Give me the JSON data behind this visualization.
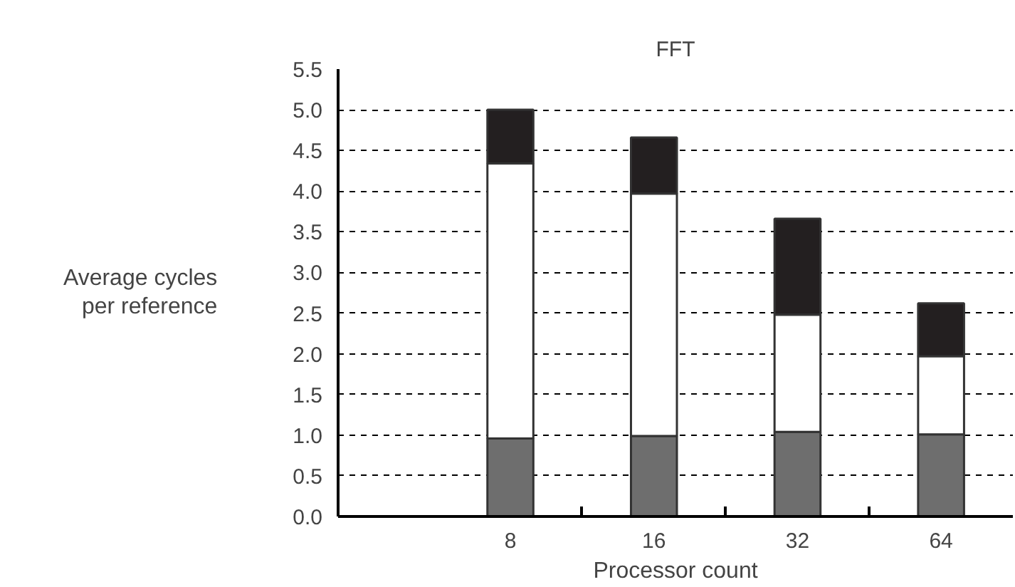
{
  "chart_data": {
    "type": "bar",
    "title": "FFT",
    "xlabel": "Processor count",
    "ylabel": "Average cycles\nper reference",
    "categories": [
      "8",
      "16",
      "32",
      "64"
    ],
    "stacked": true,
    "series": [
      {
        "color": "#6e6e6e",
        "values": [
          0.96,
          0.99,
          1.04,
          1.01
        ]
      },
      {
        "color": "#ffffff",
        "values": [
          3.38,
          2.98,
          1.44,
          0.96
        ]
      },
      {
        "color": "#231f20",
        "values": [
          0.66,
          0.69,
          1.18,
          0.65
        ]
      }
    ],
    "ylim": [
      0,
      5.5
    ],
    "yticks": [
      {
        "value": 0,
        "label": "0.0"
      },
      {
        "value": 0.5,
        "label": "0.5"
      },
      {
        "value": 1,
        "label": "1.0"
      },
      {
        "value": 1.5,
        "label": "1.5"
      },
      {
        "value": 2,
        "label": "2.0"
      },
      {
        "value": 2.5,
        "label": "2.5"
      },
      {
        "value": 3,
        "label": "3.0"
      },
      {
        "value": 3.5,
        "label": "3.5"
      },
      {
        "value": 4,
        "label": "4.0"
      },
      {
        "value": 4.5,
        "label": "4.5"
      },
      {
        "value": 5,
        "label": "5.0"
      },
      {
        "value": 5.5,
        "label": "5.5"
      }
    ],
    "grid": "y"
  }
}
